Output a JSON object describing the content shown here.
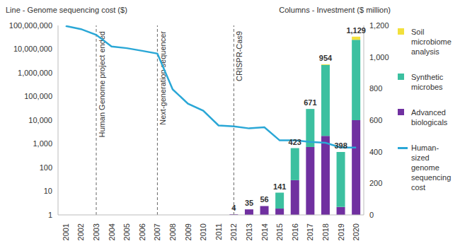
{
  "chart_data": {
    "type": "bar",
    "y_label": "Line - Genome sequencing cost ($)",
    "y2_label": "Columns - Investment ($ million)",
    "categories": [
      "2001",
      "2002",
      "2003",
      "2004",
      "2005",
      "2006",
      "2007",
      "2008",
      "2009",
      "2010",
      "2011",
      "2012",
      "2013",
      "2014",
      "2015",
      "2016",
      "2017",
      "2018",
      "2019",
      "2020"
    ],
    "series": [
      {
        "name": "Advanced biologicals",
        "type": "bar",
        "axis": "y2",
        "color": "#7030a0",
        "values": [
          null,
          null,
          null,
          null,
          null,
          null,
          null,
          null,
          null,
          null,
          null,
          4,
          35,
          56,
          40,
          220,
          430,
          500,
          50,
          600
        ]
      },
      {
        "name": "Synthetic microbes",
        "type": "bar",
        "axis": "y2",
        "color": "#3cc0a0",
        "values": [
          null,
          null,
          null,
          null,
          null,
          null,
          null,
          null,
          null,
          null,
          null,
          0,
          0,
          0,
          101,
          203,
          241,
          450,
          348,
          509
        ]
      },
      {
        "name": "Soil microbiome analysis",
        "type": "bar",
        "axis": "y2",
        "color": "#f2e03c",
        "values": [
          null,
          null,
          null,
          null,
          null,
          null,
          null,
          null,
          null,
          null,
          null,
          0,
          0,
          0,
          0,
          0,
          0,
          4,
          0,
          20
        ]
      },
      {
        "name": "Human-sized genome sequencing cost",
        "type": "line",
        "color": "#2aa7d6",
        "values": [
          95000000,
          70000000,
          40000000,
          13000000,
          11000000,
          8500000,
          6500000,
          200000,
          50000,
          25000,
          6000,
          5500,
          4500,
          5000,
          1400,
          1400,
          1200,
          1100,
          700,
          700
        ]
      }
    ],
    "totals": {
      "values": [
        null,
        null,
        null,
        null,
        null,
        null,
        null,
        null,
        null,
        null,
        null,
        4,
        35,
        56,
        141,
        423,
        671,
        954,
        398,
        1129
      ],
      "value_labels": [
        null,
        null,
        null,
        null,
        null,
        null,
        null,
        null,
        null,
        null,
        null,
        "4",
        "35",
        "56",
        "141",
        "423",
        "671",
        "954",
        "398",
        "1,129"
      ]
    },
    "data_labels": true,
    "stacked": true,
    "log": "y",
    "grid": false,
    "legend": "right",
    "ylim": [
      1,
      100000000
    ],
    "yticks": [
      1,
      10,
      100,
      {
        "value": 1000,
        "label": "1,000"
      },
      {
        "value": 10000,
        "label": "10,000"
      },
      {
        "value": 100000,
        "label": "100,000"
      },
      {
        "value": 1000000,
        "label": "1,000,000"
      },
      {
        "value": 10000000,
        "label": "10,000,000"
      },
      {
        "value": 100000000,
        "label": "100,000,000"
      }
    ],
    "y2lim": [
      0,
      1200
    ],
    "y2ticks": [
      0,
      200,
      400,
      600,
      800,
      {
        "value": 1000,
        "label": "1,000"
      },
      {
        "value": 1200,
        "label": "1,200"
      }
    ],
    "annotations": [
      {
        "x": "2003",
        "text": "Human Genome project ended"
      },
      {
        "x": "2007",
        "text": "Next-generation sequencer"
      },
      {
        "x": "2012",
        "text": "CRISPR-Cas9"
      }
    ]
  }
}
